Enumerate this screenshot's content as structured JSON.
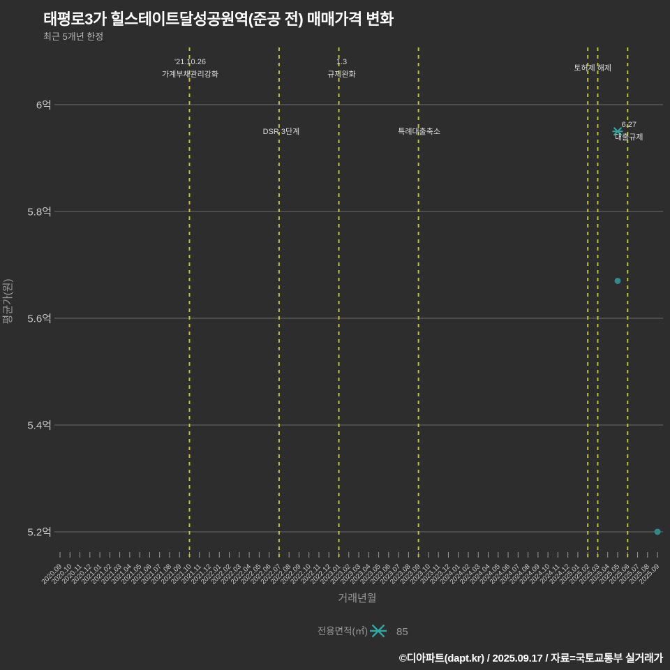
{
  "header": {
    "title": "태평로3가 힐스테이트달성공원역(준공 전) 매매가격 변화",
    "subtitle": "최근 5개년 한정"
  },
  "axes": {
    "x_title": "거래년월",
    "y_title": "평균가(원)"
  },
  "legend": {
    "title": "전용면적(㎡)",
    "series_label": "85",
    "marker": "asterisk-icon"
  },
  "footer": {
    "credit": "©디아파트(dapt.kr) / 2025.09.17 / 자료=국토교통부 실거래가"
  },
  "colors": {
    "background": "#2d2d2d",
    "grid": "#6a6a6a",
    "tick": "#999999",
    "event_line": "#c1c52e",
    "annotation_text": "#dcdcdc",
    "accent_teal": "#2da8a2",
    "dot_teal": "#31898c",
    "title_text": "#ffffff"
  },
  "chart_data": {
    "type": "scatter",
    "title": "태평로3가 힐스테이트달성공원역(준공 전) 매매가격 변화",
    "subtitle": "최근 5개년 한정",
    "xlabel": "거래년월",
    "ylabel": "평균가(원)",
    "grid": true,
    "legend_position": "bottom-center",
    "ylim_eok": [
      5.15,
      6.11
    ],
    "y_ticks": [
      {
        "label": "6억",
        "value": 6.0
      },
      {
        "label": "5.8억",
        "value": 5.8
      },
      {
        "label": "5.6억",
        "value": 5.6
      },
      {
        "label": "5.4억",
        "value": 5.4
      },
      {
        "label": "5.2억",
        "value": 5.2
      }
    ],
    "x_categories": [
      "2020.09",
      "2020.10",
      "2020.11",
      "2020.12",
      "2021.01",
      "2021.02",
      "2021.03",
      "2021.04",
      "2021.05",
      "2021.06",
      "2021.07",
      "2021.08",
      "2021.09",
      "2021.10",
      "2021.11",
      "2021.12",
      "2022.01",
      "2022.02",
      "2022.03",
      "2022.04",
      "2022.05",
      "2022.06",
      "2022.07",
      "2022.08",
      "2022.09",
      "2022.10",
      "2022.11",
      "2022.12",
      "2023.01",
      "2023.02",
      "2023.03",
      "2023.04",
      "2023.05",
      "2023.06",
      "2023.07",
      "2023.08",
      "2023.09",
      "2023.10",
      "2023.11",
      "2023.12",
      "2024.01",
      "2024.02",
      "2024.03",
      "2024.04",
      "2024.05",
      "2024.06",
      "2024.07",
      "2024.08",
      "2024.09",
      "2024.10",
      "2024.11",
      "2024.12",
      "2025.01",
      "2025.02",
      "2025.03",
      "2025.04",
      "2025.05",
      "2025.06",
      "2025.07",
      "2025.08",
      "2025.09"
    ],
    "series": [
      {
        "name": "85",
        "points": [
          {
            "x": "2025.05",
            "y_eok": 5.95,
            "marker": "asterisk"
          },
          {
            "x": "2025.05",
            "y_eok": 5.67,
            "marker": "circle"
          },
          {
            "x": "2025.09",
            "y_eok": 5.2,
            "marker": "circle"
          }
        ]
      }
    ],
    "event_lines": [
      {
        "x": "2021.10",
        "labels": [
          "'21.10.26",
          "가계부채관리강화"
        ],
        "label_pos": "above",
        "label_dx": 1
      },
      {
        "x": "2022.07",
        "labels": [
          "DSR 3단계"
        ],
        "label_pos": "inplot",
        "label_dx": 3
      },
      {
        "x": "2023.01",
        "labels": [
          "1.3",
          "규제완화"
        ],
        "label_pos": "above",
        "label_dx": 4
      },
      {
        "x": "2023.09",
        "labels": [
          "특례대출축소"
        ],
        "label_pos": "inplot",
        "label_dx": 1
      },
      {
        "x": "2025.02",
        "labels": [
          "토허제 해제"
        ],
        "label_pos": "above",
        "label_dx": 7
      },
      {
        "x": "2025.03",
        "labels": [],
        "label_pos": "none",
        "label_dx": 0
      },
      {
        "x": "2025.06",
        "labels": [
          "6.27",
          "대출규제"
        ],
        "label_pos": "inplot",
        "label_dx": 2
      }
    ]
  }
}
